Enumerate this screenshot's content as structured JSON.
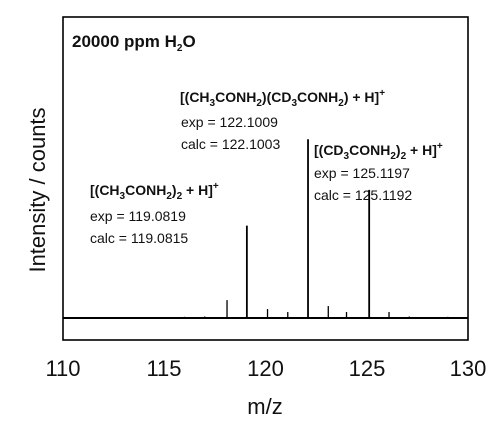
{
  "chart_data": {
    "type": "line",
    "title": "20000 ppm H2O",
    "xlabel": "m/z",
    "ylabel": "Intensity / counts",
    "xlim": [
      110,
      130
    ],
    "xticks": [
      "110",
      "115",
      "120",
      "125",
      "130"
    ],
    "grid": false,
    "baseline": {
      "x": [
        110,
        130
      ],
      "y": [
        0.0,
        0.0
      ]
    },
    "peaks": [
      {
        "x": 113.0,
        "y": 0.002
      },
      {
        "x": 114.0,
        "y": 0.003
      },
      {
        "x": 116.0,
        "y": 0.004
      },
      {
        "x": 117.0,
        "y": 0.005
      },
      {
        "x": 118.1,
        "y": 0.06
      },
      {
        "x": 119.08,
        "y": 0.31
      },
      {
        "x": 120.1,
        "y": 0.03
      },
      {
        "x": 121.1,
        "y": 0.02
      },
      {
        "x": 122.1,
        "y": 0.6
      },
      {
        "x": 123.1,
        "y": 0.04
      },
      {
        "x": 124.0,
        "y": 0.02
      },
      {
        "x": 125.12,
        "y": 0.43
      },
      {
        "x": 126.1,
        "y": 0.02
      },
      {
        "x": 127.1,
        "y": 0.005
      },
      {
        "x": 129.0,
        "y": 0.004
      }
    ],
    "annotations": [
      {
        "formula": "[(CH3CONH2)2 + H]+",
        "exp": "exp = 119.0819",
        "calc": "calc = 119.0815"
      },
      {
        "formula": "[(CH3CONH2)(CD3CONH2) + H]+",
        "exp": "exp = 122.1009",
        "calc": "calc = 122.1003"
      },
      {
        "formula": "[(CD3CONH2)2 + H]+",
        "exp": "exp = 125.1197",
        "calc": "calc = 125.1192"
      }
    ]
  }
}
